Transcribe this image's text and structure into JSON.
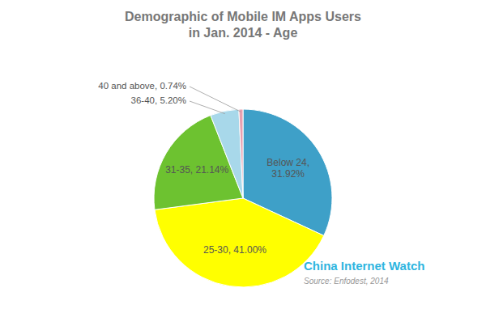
{
  "chart_data": {
    "type": "pie",
    "title": "Demographic of Mobile IM Apps Users\nin Jan. 2014 - Age",
    "values": [
      31.92,
      41.0,
      21.14,
      5.2,
      0.74
    ],
    "value_labels": [
      "Below 24,\n31.92%",
      "25-30, 41.00%",
      "31-35, 21.14%",
      "36-40, 5.20%",
      "40 and above, 0.74%"
    ],
    "colors": [
      "#3EA0C8",
      "#FFFF00",
      "#6DC230",
      "#A8D8EA",
      "#E8A0B0"
    ],
    "annotations": [
      "China Internet Watch",
      "Source: Enfodest, 2014"
    ]
  }
}
